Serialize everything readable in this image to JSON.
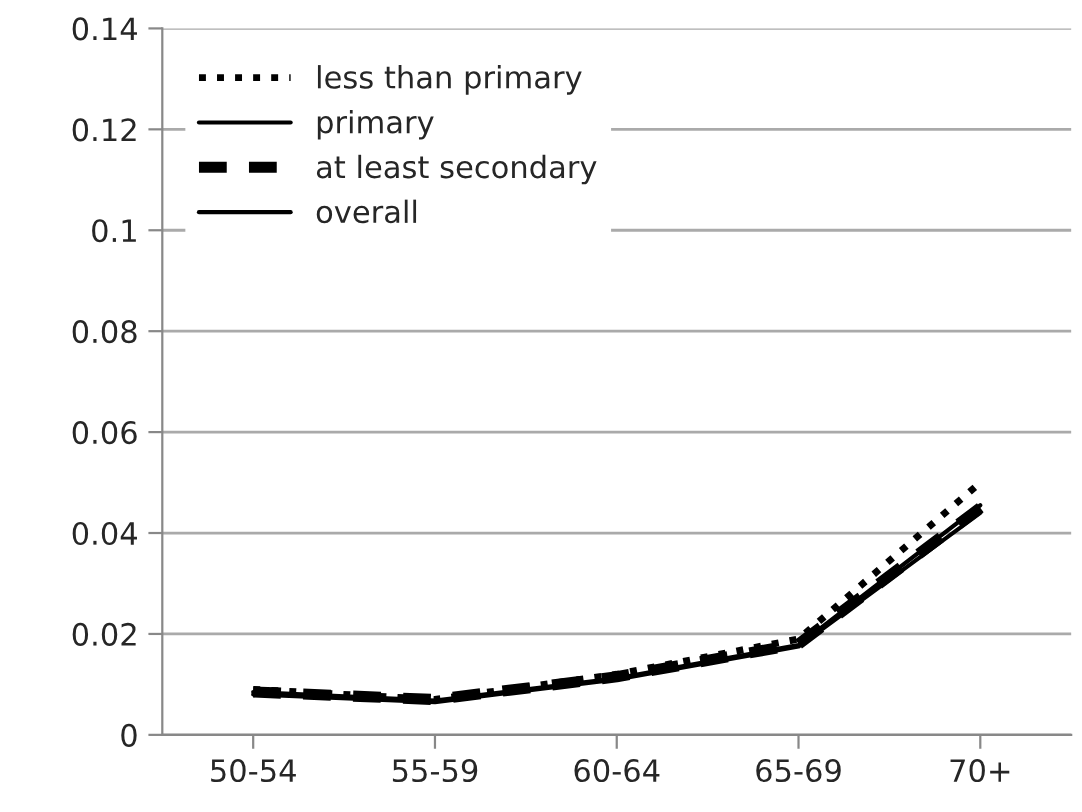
{
  "chart_data": {
    "type": "line",
    "categories": [
      "50-54",
      "55-59",
      "60-64",
      "65-69",
      "70+"
    ],
    "series": [
      {
        "name": "less than primary",
        "color": "#000000",
        "line_style": "dotted",
        "values": [
          0.009,
          0.007,
          0.012,
          0.019,
          0.05
        ]
      },
      {
        "name": "primary",
        "color": "#000000",
        "line_style": "solid",
        "values": [
          0.008,
          0.0065,
          0.011,
          0.0175,
          0.044
        ]
      },
      {
        "name": "at least secondary",
        "color": "#000000",
        "line_style": "dashed",
        "values": [
          0.0085,
          0.007,
          0.0115,
          0.018,
          0.045
        ]
      },
      {
        "name": "overall",
        "color": "#000000",
        "line_style": "solid",
        "values": [
          0.0085,
          0.0068,
          0.0112,
          0.0178,
          0.0455
        ]
      }
    ],
    "ylim": [
      0,
      0.14
    ],
    "yticks": [
      0,
      0.02,
      0.04,
      0.06,
      0.08,
      0.1,
      0.12,
      0.14
    ],
    "grid": "y",
    "legend": "top left",
    "marker": "none"
  }
}
